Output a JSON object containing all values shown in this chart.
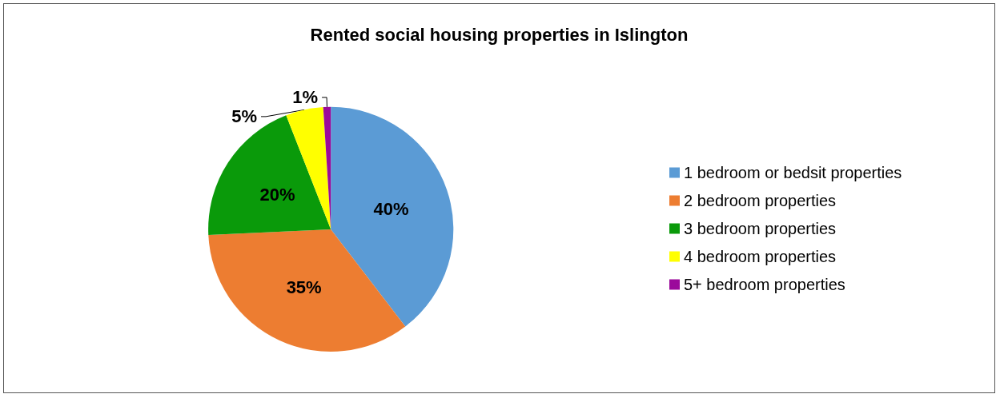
{
  "chart_data": {
    "type": "pie",
    "title": "Rented social housing properties in Islington",
    "categories": [
      "1 bedroom or bedsit properties",
      "2 bedroom properties",
      "3 bedroom properties",
      "4 bedroom properties",
      "5+ bedroom properties"
    ],
    "values": [
      40,
      35,
      20,
      5,
      1
    ],
    "colors": [
      "#5b9bd5",
      "#ed7d31",
      "#0a9a0a",
      "#ffff00",
      "#9b0a9b"
    ],
    "value_labels": [
      "40%",
      "35%",
      "20%",
      "5%",
      "1%"
    ],
    "legend": "right"
  }
}
